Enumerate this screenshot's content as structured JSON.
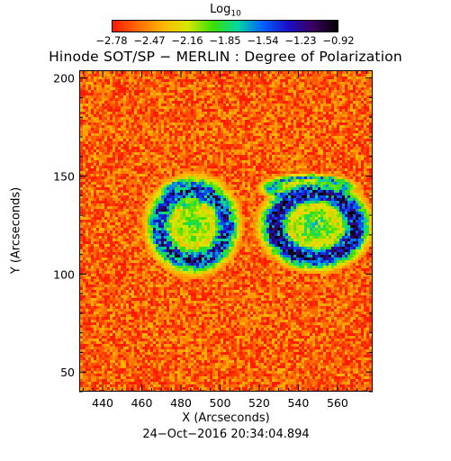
{
  "colorbar": {
    "title": "Log",
    "title_sub": "10",
    "tick_labels": [
      "−2.78",
      "−2.47",
      "−2.16",
      "−1.85",
      "−1.54",
      "−1.23",
      "−0.92"
    ],
    "colors": [
      "#ff1a00",
      "#ff6a00",
      "#ffb400",
      "#d8e800",
      "#3ce000",
      "#00d8a0",
      "#0060ff",
      "#1a10c8",
      "#3a0060",
      "#050005"
    ]
  },
  "chart_data": {
    "type": "heatmap",
    "title": "Hinode SOT/SP − MERLIN : Degree of Polarization",
    "xlabel": "X (Arcseconds)",
    "ylabel": "Y (Arcseconds)",
    "xlim": [
      428,
      578
    ],
    "ylim": [
      40,
      204
    ],
    "xticks": [
      440,
      460,
      480,
      500,
      520,
      540,
      560
    ],
    "yticks": [
      50,
      100,
      150,
      200
    ],
    "color_scale": "log10",
    "value_range": [
      -2.78,
      -0.92
    ],
    "background_level": -2.6,
    "features": [
      {
        "name": "left-plage-ring",
        "x": [
          462,
          508
        ],
        "y": [
          102,
          150
        ],
        "peak_value": -1.1
      },
      {
        "name": "right-active-region",
        "x": [
          520,
          575
        ],
        "y": [
          104,
          148
        ],
        "peak_value": -0.95
      },
      {
        "name": "left-top-arc",
        "x": [
          468,
          494
        ],
        "y": [
          134,
          150
        ],
        "peak_value": -1.6
      },
      {
        "name": "right-top-arc",
        "x": [
          520,
          568
        ],
        "y": [
          138,
          152
        ],
        "peak_value": -1.5
      }
    ]
  },
  "footer": {
    "timestamp": "24−Oct−2016 20:34:04.894"
  }
}
